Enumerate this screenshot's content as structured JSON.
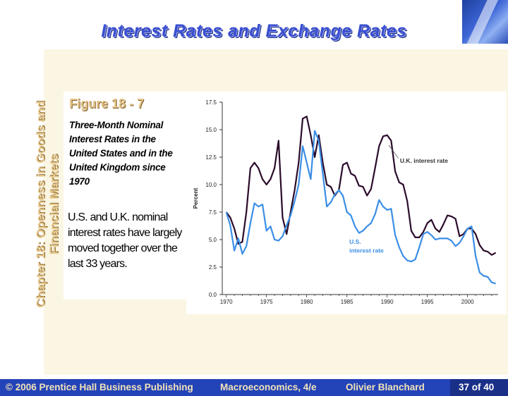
{
  "slide": {
    "title": "Interest Rates and Exchange Rates",
    "side_title_line1": "Chapter 18: Openness in Goods and",
    "side_title_line2": "Financial Markets",
    "figure_label": "Figure 18 - 7",
    "figure_caption": "Three-Month Nominal Interest Rates in the United States and in the United Kingdom since 1970",
    "figure_body": "U.S. and U.K. nominal interest rates have largely moved together over the last 33 years.",
    "footer": {
      "copyright": "© 2006 Prentice Hall Business Publishing",
      "book": "Macroeconomics, 4/e",
      "author": "Olivier Blanchard",
      "page": "37 of 40"
    },
    "colors": {
      "title": "#3a4fd0",
      "footer_bg": "#2343b8",
      "uk_line": "#2a0b2a",
      "us_line": "#3b8ee6"
    }
  },
  "chart_data": {
    "type": "line",
    "title": "",
    "xlabel": "",
    "ylabel": "Percent",
    "xlim": [
      1969.5,
      2003.8
    ],
    "ylim": [
      0,
      17.5
    ],
    "xticks": [
      1970,
      1975,
      1980,
      1985,
      1990,
      1995,
      2000
    ],
    "yticks": [
      0.0,
      2.5,
      5.0,
      7.5,
      10.0,
      12.5,
      15.0,
      17.5
    ],
    "ytick_labels": [
      "0.0",
      "2.5",
      "5.0",
      "7.5",
      "10.0",
      "12.5",
      "15.0",
      "17.5"
    ],
    "grid": false,
    "series": [
      {
        "name": "U.K. interest rate",
        "x": [
          1970.0,
          1970.5,
          1971.0,
          1971.5,
          1972.0,
          1972.5,
          1973.0,
          1973.5,
          1974.0,
          1974.5,
          1975.0,
          1975.5,
          1976.0,
          1976.5,
          1977.0,
          1977.5,
          1978.0,
          1978.5,
          1979.0,
          1979.5,
          1980.0,
          1980.5,
          1981.0,
          1981.5,
          1982.0,
          1982.5,
          1983.0,
          1983.5,
          1984.0,
          1984.5,
          1985.0,
          1985.5,
          1986.0,
          1986.5,
          1987.0,
          1987.5,
          1988.0,
          1988.5,
          1989.0,
          1989.5,
          1990.0,
          1990.5,
          1991.0,
          1991.5,
          1992.0,
          1992.5,
          1993.0,
          1993.5,
          1994.0,
          1994.5,
          1995.0,
          1995.5,
          1996.0,
          1996.5,
          1997.0,
          1997.5,
          1998.0,
          1998.5,
          1999.0,
          1999.5,
          2000.0,
          2000.5,
          2001.0,
          2001.5,
          2002.0,
          2002.5,
          2003.0,
          2003.5
        ],
        "values": [
          7.5,
          7.0,
          6.0,
          4.6,
          4.8,
          7.5,
          11.5,
          12.0,
          11.5,
          10.5,
          10.0,
          10.5,
          11.5,
          14.0,
          7.0,
          5.5,
          7.5,
          9.5,
          12.0,
          16.0,
          16.2,
          14.5,
          12.5,
          14.5,
          12.0,
          10.0,
          9.8,
          9.0,
          9.5,
          11.8,
          12.0,
          11.0,
          10.8,
          9.9,
          9.8,
          9.0,
          9.6,
          11.5,
          13.5,
          14.4,
          14.5,
          14.0,
          11.2,
          10.2,
          10.0,
          8.5,
          5.8,
          5.2,
          5.2,
          5.7,
          6.5,
          6.8,
          6.0,
          5.7,
          6.4,
          7.2,
          7.1,
          6.9,
          5.3,
          5.5,
          6.0,
          6.0,
          5.5,
          4.5,
          4.0,
          3.9,
          3.6,
          3.8
        ]
      },
      {
        "name": "U.S. interest rate",
        "x": [
          1970.0,
          1970.5,
          1971.0,
          1971.5,
          1972.0,
          1972.5,
          1973.0,
          1973.5,
          1974.0,
          1974.5,
          1975.0,
          1975.5,
          1976.0,
          1976.5,
          1977.0,
          1977.5,
          1978.0,
          1978.5,
          1979.0,
          1979.5,
          1980.0,
          1980.5,
          1981.0,
          1981.5,
          1982.0,
          1982.5,
          1983.0,
          1983.5,
          1984.0,
          1984.5,
          1985.0,
          1985.5,
          1986.0,
          1986.5,
          1987.0,
          1987.5,
          1988.0,
          1988.5,
          1989.0,
          1989.5,
          1990.0,
          1990.5,
          1991.0,
          1991.5,
          1992.0,
          1992.5,
          1993.0,
          1993.5,
          1994.0,
          1994.5,
          1995.0,
          1995.5,
          1996.0,
          1996.5,
          1997.0,
          1997.5,
          1998.0,
          1998.5,
          1999.0,
          1999.5,
          2000.0,
          2000.5,
          2001.0,
          2001.5,
          2002.0,
          2002.5,
          2003.0,
          2003.5
        ],
        "values": [
          7.5,
          6.3,
          4.0,
          5.1,
          3.7,
          4.4,
          6.5,
          8.3,
          8.0,
          8.2,
          5.8,
          6.2,
          5.0,
          4.9,
          5.3,
          6.3,
          7.2,
          8.5,
          10.0,
          13.5,
          12.0,
          10.5,
          14.9,
          14.0,
          11.0,
          8.0,
          8.4,
          9.1,
          9.5,
          9.0,
          7.5,
          7.2,
          6.2,
          5.6,
          5.8,
          6.2,
          6.5,
          7.3,
          8.6,
          8.0,
          7.7,
          7.8,
          5.4,
          4.3,
          3.5,
          3.1,
          3.0,
          3.2,
          4.3,
          5.5,
          5.7,
          5.4,
          5.0,
          5.1,
          5.1,
          5.1,
          4.9,
          4.4,
          4.7,
          5.3,
          6.0,
          6.2,
          3.5,
          2.0,
          1.7,
          1.6,
          1.1,
          1.0
        ]
      }
    ],
    "annotations": [
      {
        "text": "U.K. interest rate",
        "series": "U.K. interest rate"
      },
      {
        "text": "U.S.",
        "series": "U.S. interest rate"
      },
      {
        "text": "interest rate",
        "series": "U.S. interest rate"
      }
    ]
  }
}
